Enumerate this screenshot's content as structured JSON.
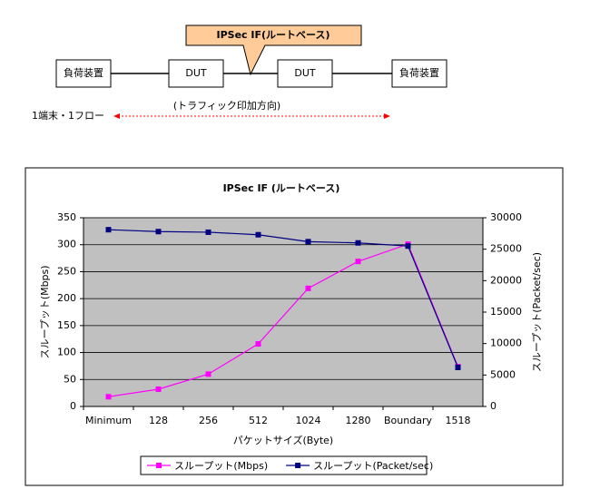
{
  "diagram": {
    "nodes": [
      "負荷装置",
      "DUT",
      "DUT",
      "負荷装置"
    ],
    "callout": "IPSec IF(ルートベース)",
    "flow_label": "1端末・1フロー",
    "direction_label": "(トラフィック印加方向)"
  },
  "chart_data": {
    "type": "line",
    "title": "IPSec IF (ルートベース)",
    "x_label": "パケットサイズ(Byte)",
    "y_label": "スループット(Mbps)",
    "y2_label": "スループット(Packet/sec)",
    "categories": [
      "Minimum",
      "128",
      "256",
      "512",
      "1024",
      "1280",
      "Boundary",
      "1518"
    ],
    "series": [
      {
        "name": "スループット(Mbps)",
        "color": "#ff00ff",
        "values": [
          18,
          32,
          60,
          116,
          219,
          269,
          301,
          74
        ]
      },
      {
        "name": "スループット(Packet/sec)",
        "color": "#000080",
        "axis": "y2",
        "values": [
          28100,
          27800,
          27700,
          27300,
          26200,
          26000,
          25500,
          6200
        ]
      }
    ],
    "ylim": [
      0,
      350
    ],
    "yticks": [
      0,
      50,
      100,
      150,
      200,
      250,
      300,
      350
    ],
    "y2lim": [
      0,
      30000
    ],
    "y2ticks": [
      0,
      5000,
      10000,
      15000,
      20000,
      25000,
      30000
    ],
    "grid": true,
    "plot_background": "#c0c0c0"
  }
}
